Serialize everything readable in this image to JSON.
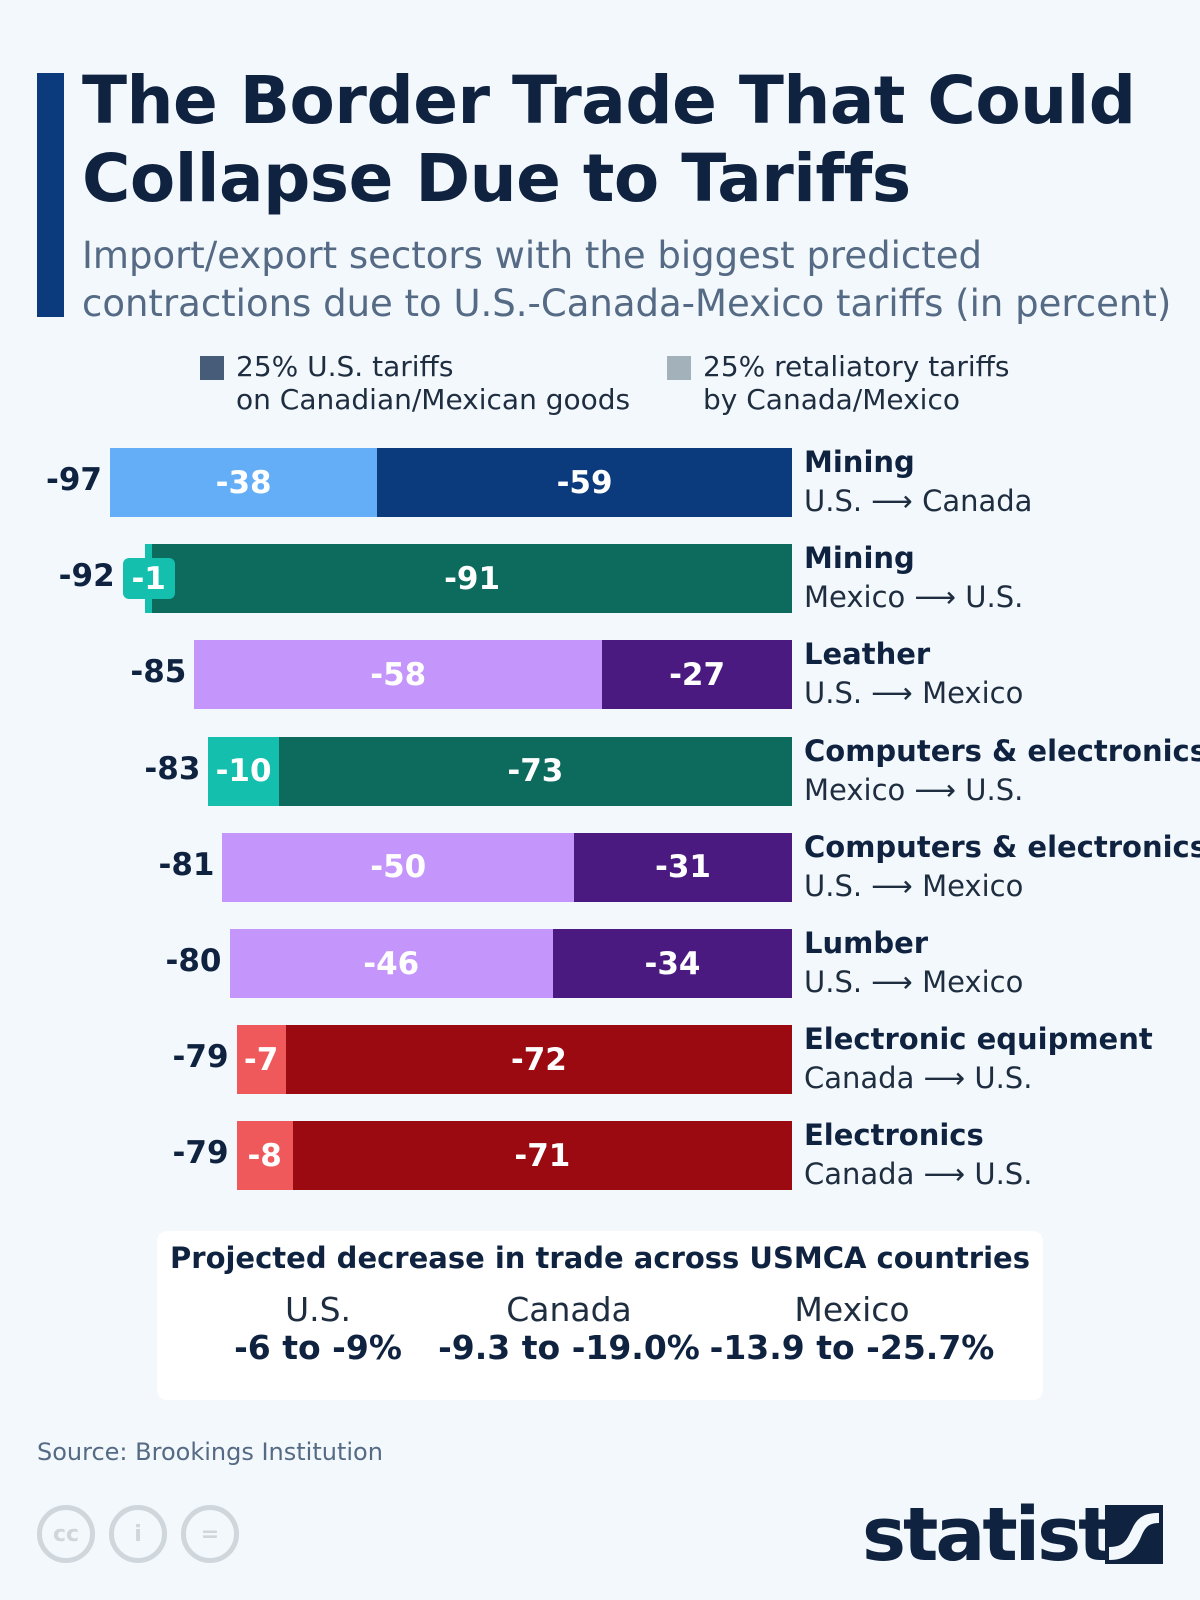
{
  "title": "The Border Trade That Could Collapse Due to Tariffs",
  "subtitle": "Import/export sectors with the biggest predicted contractions due to U.S.-Canada-Mexico tariffs (in percent)",
  "legend": [
    {
      "label_line1": "25% U.S. tariffs",
      "label_line2": "on Canadian/Mexican goods",
      "color": "#465c78"
    },
    {
      "label_line1": "25% retaliatory tariffs",
      "label_line2": "by Canada/Mexico",
      "color": "#a3b2ba"
    }
  ],
  "chart_data": {
    "type": "bar",
    "orientation": "horizontal-stacked",
    "categories": [
      {
        "sector": "Mining",
        "flow": "U.S. ⟶ Canada"
      },
      {
        "sector": "Mining",
        "flow": "Mexico ⟶ U.S."
      },
      {
        "sector": "Leather",
        "flow": "U.S. ⟶ Mexico"
      },
      {
        "sector": "Computers & electronics",
        "flow": "Mexico ⟶ U.S."
      },
      {
        "sector": "Computers & electronics",
        "flow": "U.S. ⟶ Mexico"
      },
      {
        "sector": "Lumber",
        "flow": "U.S. ⟶ Mexico"
      },
      {
        "sector": "Electronic equipment",
        "flow": "Canada ⟶ U.S."
      },
      {
        "sector": "Electronics",
        "flow": "Canada ⟶ U.S."
      }
    ],
    "totals": [
      -97,
      -92,
      -85,
      -83,
      -81,
      -80,
      -79,
      -79
    ],
    "series": [
      {
        "name": "25% retaliatory tariffs by Canada/Mexico",
        "values": [
          -38,
          -1,
          -58,
          -10,
          -50,
          -46,
          -7,
          -8
        ],
        "colors": [
          "#64aef8",
          "#14bfad",
          "#c495fa",
          "#14bfad",
          "#c495fa",
          "#c495fa",
          "#f0595c",
          "#f0595c"
        ]
      },
      {
        "name": "25% U.S. tariffs on Canadian/Mexican goods",
        "values": [
          -59,
          -91,
          -27,
          -73,
          -31,
          -34,
          -72,
          -71
        ],
        "colors": [
          "#0b3a7d",
          "#0d6b5d",
          "#4b1a80",
          "#0d6b5d",
          "#4b1a80",
          "#4b1a80",
          "#9b0a10",
          "#9b0a10"
        ]
      }
    ],
    "xlim": [
      -97,
      0
    ]
  },
  "summary": {
    "title": "Projected decrease in trade across USMCA countries",
    "items": [
      {
        "country": "U.S.",
        "range": "-6 to -9%"
      },
      {
        "country": "Canada",
        "range": "-9.3 to -19.0%"
      },
      {
        "country": "Mexico",
        "range": "-13.9 to -25.7%"
      }
    ]
  },
  "source": "Source: Brookings Institution",
  "footer": {
    "license_icons": [
      "cc-icon",
      "attribution-icon",
      "no-derivatives-icon"
    ],
    "logo": "statista"
  }
}
